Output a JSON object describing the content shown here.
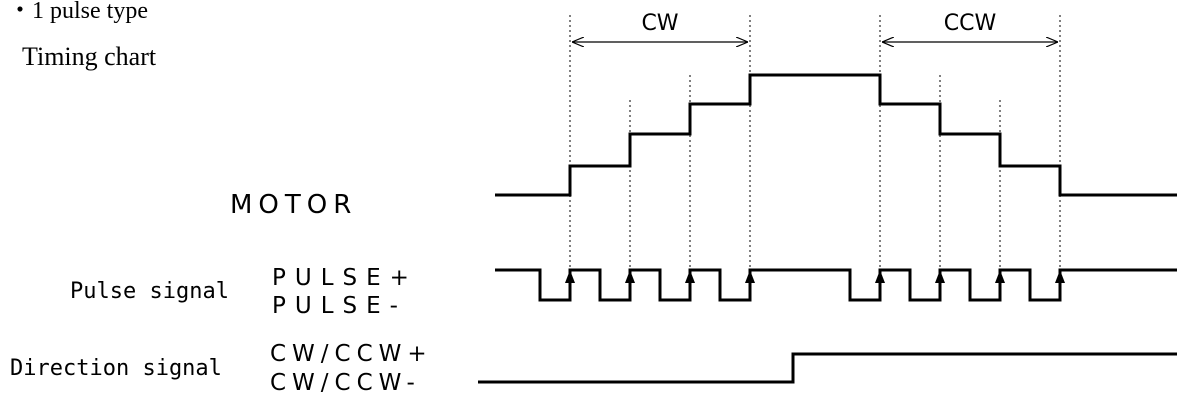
{
  "heading": {
    "bullet_title": "・1 pulse type",
    "subtitle": "Timing chart"
  },
  "intervals": {
    "cw": "CW",
    "ccw": "CCW"
  },
  "rows": {
    "motor": {
      "label": "MOTOR"
    },
    "pulse": {
      "group_label": "Pulse signal",
      "plus": "PULSE+",
      "minus": "PULSE-"
    },
    "direction": {
      "group_label": "Direction signal",
      "plus": "CW/CCW+",
      "minus": "CW/CCW-"
    }
  },
  "colors": {
    "line": "#000000",
    "background": "#ffffff"
  }
}
